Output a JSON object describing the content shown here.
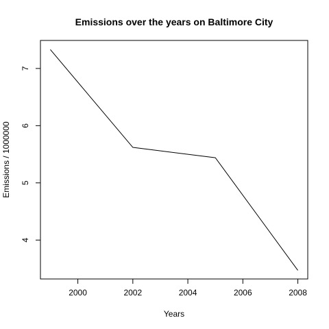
{
  "chart_data": {
    "type": "line",
    "title": "Emissions over the years on Baltimore City",
    "xlabel": "Years",
    "ylabel": "Emissions / 1000000",
    "x": [
      1999,
      2002,
      2005,
      2008
    ],
    "series": [
      {
        "values": [
          7.33,
          5.62,
          5.44,
          3.47
        ]
      }
    ],
    "xlim": [
      1998.64,
      2008.36
    ],
    "ylim": [
      3.32,
      7.49
    ],
    "xticks": [
      2000,
      2002,
      2004,
      2006,
      2008
    ],
    "xtick_labels": [
      "2000",
      "2002",
      "2004",
      "2006",
      "2008"
    ],
    "yticks": [
      4,
      5,
      6,
      7
    ],
    "ytick_labels": [
      "4",
      "5",
      "6",
      "7"
    ],
    "grid": false,
    "line_color": "#000000"
  }
}
